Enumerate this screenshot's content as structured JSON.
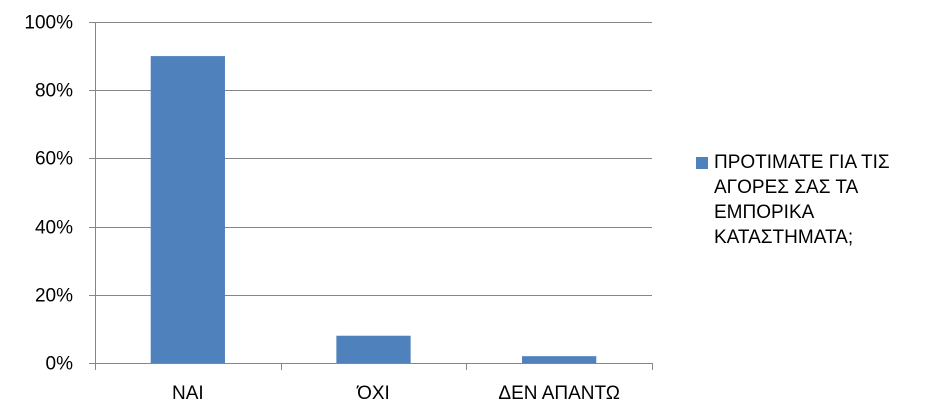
{
  "chart_data": {
    "type": "bar",
    "categories": [
      "ΝΑΙ",
      "ΌΧΙ",
      "ΔΕΝ ΑΠΑΝΤΩ"
    ],
    "series": [
      {
        "name": "ΠΡΟΤΙΜΑΤΕ ΓΙΑ ΤΙΣ ΑΓΟΡΕΣ ΣΑΣ ΤΑ ΕΜΠΟΡΙΚΑ ΚΑΤΑΣΤΗΜΑΤΑ;",
        "values": [
          0.9,
          0.08,
          0.02
        ]
      }
    ],
    "ylim": [
      0,
      1
    ],
    "yticks": [
      "0%",
      "20%",
      "40%",
      "60%",
      "80%",
      "100%"
    ],
    "grid": true,
    "legend_position": "right",
    "bar_color": "#4F81BD",
    "grid_color": "#868686"
  }
}
